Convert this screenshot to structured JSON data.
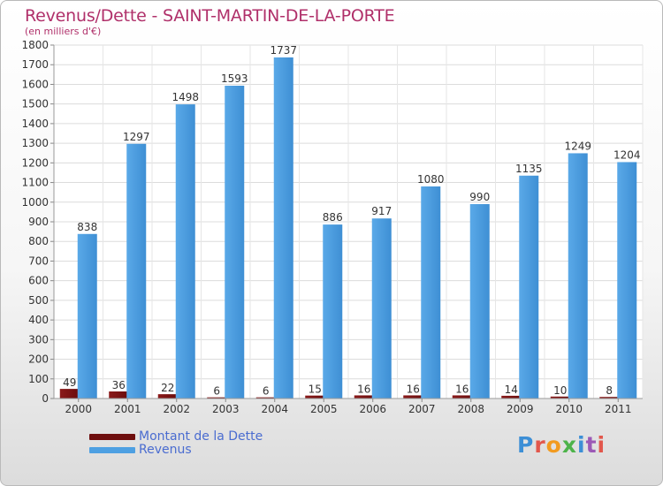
{
  "title": "Revenus/Dette - SAINT-MARTIN-DE-LA-PORTE",
  "subtitle": "(en milliers d'€)",
  "legend": [
    "Montant de la Dette",
    "Revenus"
  ],
  "logo_letters": [
    "P",
    "r",
    "o",
    "x",
    "i",
    "t",
    "i"
  ],
  "chart_data": {
    "type": "bar",
    "title": "Revenus/Dette - SAINT-MARTIN-DE-LA-PORTE",
    "subtitle": "(en milliers d'€)",
    "xlabel": "",
    "ylabel": "",
    "categories": [
      "2000",
      "2001",
      "2002",
      "2003",
      "2004",
      "2005",
      "2006",
      "2007",
      "2008",
      "2009",
      "2010",
      "2011"
    ],
    "series": [
      {
        "name": "Montant de la Dette",
        "color": "#7a1010",
        "values": [
          49,
          36,
          22,
          6,
          6,
          15,
          16,
          16,
          16,
          14,
          10,
          8
        ]
      },
      {
        "name": "Revenus",
        "color": "#4ea0e2",
        "values": [
          838,
          1297,
          1498,
          1593,
          1737,
          886,
          917,
          1080,
          990,
          1135,
          1249,
          1204
        ]
      }
    ],
    "ylim": [
      0,
      1800
    ],
    "yticks": [
      0,
      100,
      200,
      300,
      400,
      500,
      600,
      700,
      800,
      900,
      1000,
      1100,
      1200,
      1300,
      1400,
      1500,
      1600,
      1700,
      1800
    ],
    "grid": true,
    "legend_position": "bottom-left"
  }
}
